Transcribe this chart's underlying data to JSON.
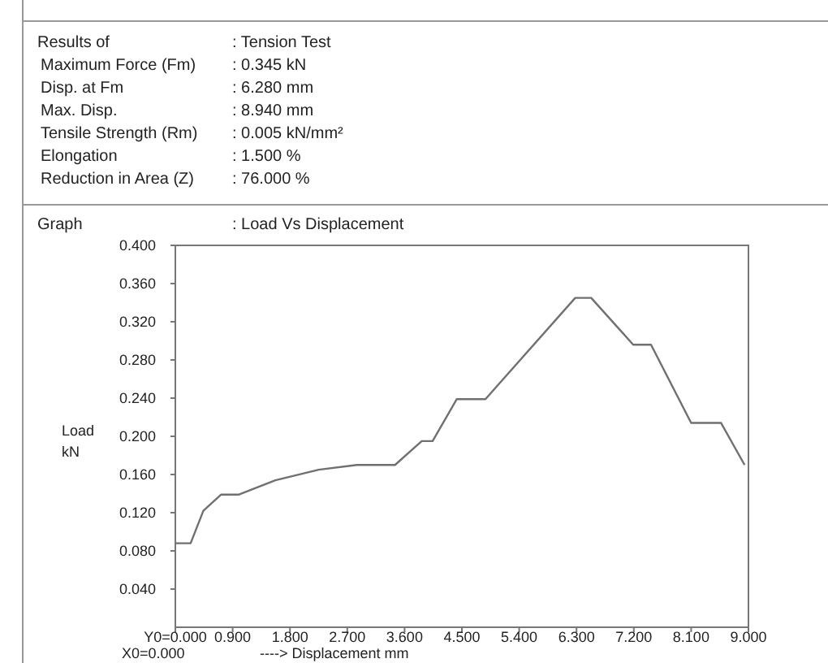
{
  "chart_data": {
    "type": "line",
    "title": "Graph : Load Vs Displacement",
    "xlabel": "----> Displacement  mm",
    "ylabel": "Load kN",
    "annotations": [
      "Results of : Tension Test",
      "Maximum Force (Fm) : 0.345  kN",
      "Disp. at Fm : 6.280  mm",
      "Max. Disp. : 8.940  mm",
      "Tensile Strength (Rm) : 0.005  kN/mm²",
      "Elongation : 1.500  %",
      "Reduction in Area (Z) : 76.000  %",
      "X0=0.000"
    ],
    "x": [
      0,
      0.24,
      0.44,
      0.72,
      1.0,
      1.57,
      2.25,
      2.85,
      3.45,
      3.87,
      4.04,
      4.42,
      4.87,
      6.28,
      6.53,
      7.19,
      7.47,
      8.1,
      8.57,
      8.94
    ],
    "series": [
      {
        "color": "#707070",
        "values": [
          0.088,
          0.088,
          0.122,
          0.139,
          0.139,
          0.154,
          0.165,
          0.17,
          0.17,
          0.195,
          0.195,
          0.239,
          0.239,
          0.345,
          0.345,
          0.296,
          0.296,
          0.214,
          0.214,
          0.17
        ]
      }
    ],
    "xlim": [
      0,
      9
    ],
    "ylim": [
      0,
      0.4
    ],
    "xticks": [
      {
        "value": 0,
        "label": "Y0=0.000"
      },
      {
        "value": 0.9,
        "label": "0.900"
      },
      {
        "value": 1.8,
        "label": "1.800"
      },
      {
        "value": 2.7,
        "label": "2.700"
      },
      {
        "value": 3.6,
        "label": "3.600"
      },
      {
        "value": 4.5,
        "label": "4.500"
      },
      {
        "value": 5.4,
        "label": "5.400"
      },
      {
        "value": 6.3,
        "label": "6.300"
      },
      {
        "value": 7.2,
        "label": "7.200"
      },
      {
        "value": 8.1,
        "label": "8.100"
      },
      {
        "value": 9,
        "label": "9.000"
      }
    ],
    "yticks": [
      {
        "value": 0.04,
        "label": "0.040"
      },
      {
        "value": 0.08,
        "label": "0.080"
      },
      {
        "value": 0.12,
        "label": "0.120"
      },
      {
        "value": 0.16,
        "label": "0.160"
      },
      {
        "value": 0.2,
        "label": "0.200"
      },
      {
        "value": 0.24,
        "label": "0.240"
      },
      {
        "value": 0.28,
        "label": "0.280"
      },
      {
        "value": 0.32,
        "label": "0.320"
      },
      {
        "value": 0.36,
        "label": "0.360"
      },
      {
        "value": 0.4,
        "label": "0.400"
      }
    ],
    "grid": false,
    "marker": "none",
    "line_style": "solid"
  }
}
